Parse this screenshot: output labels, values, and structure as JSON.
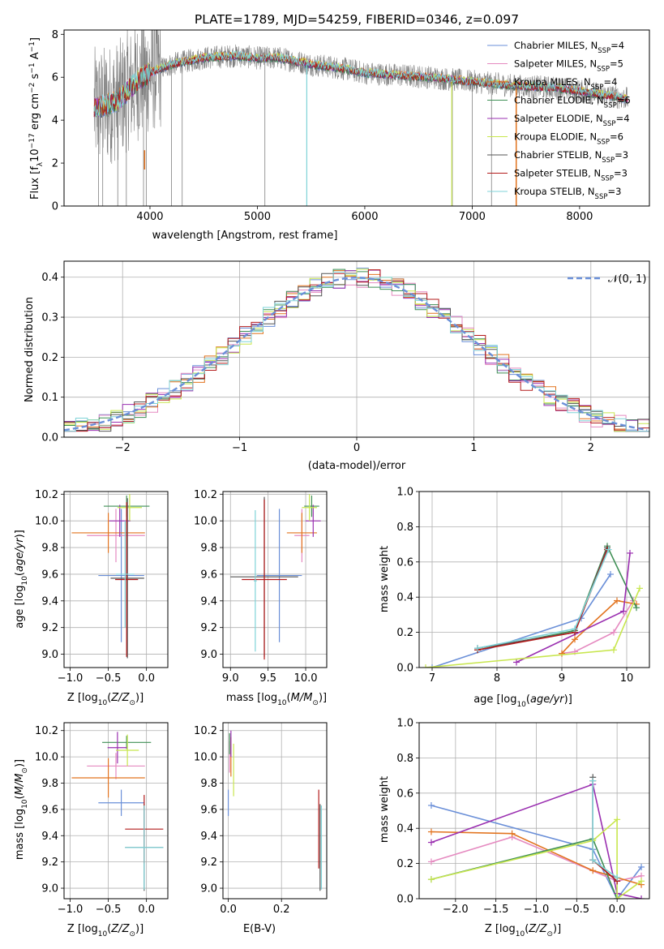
{
  "colors": {
    "Chabrier MILES": "#6a8fd8",
    "Salpeter MILES": "#e58ac0",
    "Kroupa MILES": "#e2731e",
    "Chabrier ELODIE": "#3f8f55",
    "Salpeter ELODIE": "#9a2fb0",
    "Kroupa ELODIE": "#c8e64e",
    "Chabrier STELIB": "#555555",
    "Salpeter STELIB": "#b31b1b",
    "Kroupa STELIB": "#7fd3d8",
    "data": "#808080"
  },
  "chart_data": [
    {
      "type": "line",
      "title": "PLATE=1789, MJD=54259, FIBERID=0346, z=0.097",
      "xlabel": "wavelength [Angstrom, rest frame]",
      "ylabel": "Flux [fλ10⁻¹⁷ erg cm⁻² s⁻¹ A⁻¹]",
      "xlim": [
        3200,
        8650
      ],
      "ylim": [
        0,
        8.2
      ],
      "xticks": [
        4000,
        5000,
        6000,
        7000,
        8000
      ],
      "yticks": [
        0,
        2,
        4,
        6,
        8
      ],
      "legend_position": "right",
      "legend": [
        "Chabrier MILES, N_SSP=4",
        "Salpeter MILES, N_SSP=5",
        "Kroupa MILES, N_SSP=4",
        "Chabrier ELODIE, N_SSP=6",
        "Salpeter ELODIE, N_SSP=4",
        "Kroupa ELODIE, N_SSP=6",
        "Chabrier STELIB, N_SSP=3",
        "Salpeter STELIB, N_SSP=3",
        "Kroupa STELIB, N_SSP=3"
      ],
      "legend_labels": [
        "Chabrier MILES, NSSP=4",
        "Salpeter MILES, NSSP=5",
        "Kroupa MILES, NSSP=4",
        "Chabrier ELODIE, NSSP=6",
        "Salpeter ELODIE, NSSP=4",
        "Kroupa ELODIE, NSSP=6",
        "Chabrier STELIB, NSSP=3",
        "Salpeter STELIB, NSSP=3",
        "Kroupa STELIB, NSSP=3"
      ],
      "model_continuum": {
        "x": [
          3500,
          3600,
          3700,
          3800,
          3900,
          4000,
          4200,
          4500,
          4800,
          5000,
          5200,
          5500,
          5800,
          6000,
          6300,
          6600,
          7000,
          7400,
          7800,
          8200,
          8450
        ],
        "y": [
          4.6,
          4.7,
          4.9,
          5.4,
          5.9,
          6.2,
          6.6,
          6.9,
          7.0,
          6.9,
          6.9,
          6.6,
          6.4,
          6.2,
          6.1,
          6.0,
          5.8,
          5.6,
          5.5,
          5.2,
          5.0
        ]
      }
    },
    {
      "type": "bar",
      "xlabel": "(data-model)/error",
      "ylabel": "Normed distribution",
      "xlim": [
        -2.5,
        2.5
      ],
      "ylim": [
        0,
        0.44
      ],
      "xticks": [
        -2,
        -1,
        0,
        1,
        2
      ],
      "yticks": [
        0.0,
        0.1,
        0.2,
        0.3,
        0.4
      ],
      "legend_position": "top-right",
      "legend": [
        "𝒩(0, 1)"
      ],
      "bin_width": 0.1
    },
    {
      "type": "scatter",
      "xlabel": "Z [log10(Z/Z⊙)]",
      "ylabel": "age  [log10(age/yr)]",
      "xlim": [
        -1.08,
        0.28
      ],
      "ylim": [
        8.9,
        10.22
      ],
      "xticks": [
        -1.0,
        -0.5,
        0.0
      ],
      "yticks": [
        9.0,
        9.2,
        9.4,
        9.6,
        9.8,
        10.0,
        10.2
      ],
      "points": [
        {
          "model": "Chabrier MILES",
          "x": -0.33,
          "xerr": 0.3,
          "y": 9.59,
          "yerr": 0.5
        },
        {
          "model": "Salpeter MILES",
          "x": -0.4,
          "xerr": 0.38,
          "y": 9.89,
          "yerr": 0.2
        },
        {
          "model": "Kroupa MILES",
          "x": -0.5,
          "xerr": 0.48,
          "y": 9.91,
          "yerr": 0.15
        },
        {
          "model": "Chabrier ELODIE",
          "x": -0.26,
          "xerr": 0.3,
          "y": 10.11,
          "yerr": 0.08
        },
        {
          "model": "Salpeter ELODIE",
          "x": -0.35,
          "xerr": 0.14,
          "y": 10.0,
          "yerr": 0.12
        },
        {
          "model": "Kroupa ELODIE",
          "x": -0.22,
          "xerr": 0.16,
          "y": 10.1,
          "yerr": 0.1
        },
        {
          "model": "Chabrier STELIB",
          "x": -0.25,
          "xerr": 0.22,
          "y": 9.57,
          "yerr": 0.6
        },
        {
          "model": "Salpeter STELIB",
          "x": -0.26,
          "xerr": 0.15,
          "y": 9.56,
          "yerr": 0.58
        },
        {
          "model": "Kroupa STELIB",
          "x": -0.28,
          "xerr": 0.12,
          "y": 9.6,
          "yerr": 0.4
        }
      ]
    },
    {
      "type": "scatter",
      "xlabel": "mass [log10(M/M⊙)]",
      "ylabel": "",
      "xlim": [
        8.9,
        10.28
      ],
      "ylim": [
        8.9,
        10.22
      ],
      "xticks": [
        9.0,
        9.5,
        10.0
      ],
      "yticks": [
        9.0,
        9.2,
        9.4,
        9.6,
        9.8,
        10.0,
        10.2
      ],
      "points": [
        {
          "model": "Chabrier MILES",
          "x": 9.65,
          "xerr": 0.3,
          "y": 9.59,
          "yerr": 0.5
        },
        {
          "model": "Salpeter MILES",
          "x": 9.95,
          "xerr": 0.1,
          "y": 9.89,
          "yerr": 0.2
        },
        {
          "model": "Kroupa MILES",
          "x": 9.95,
          "xerr": 0.2,
          "y": 9.91,
          "yerr": 0.15
        },
        {
          "model": "Chabrier ELODIE",
          "x": 10.08,
          "xerr": 0.1,
          "y": 10.11,
          "yerr": 0.08
        },
        {
          "model": "Salpeter ELODIE",
          "x": 10.1,
          "xerr": 0.1,
          "y": 10.0,
          "yerr": 0.12
        },
        {
          "model": "Kroupa ELODIE",
          "x": 10.05,
          "xerr": 0.1,
          "y": 10.1,
          "yerr": 0.1
        },
        {
          "model": "Chabrier STELIB",
          "x": 9.45,
          "xerr": 0.45,
          "y": 9.58,
          "yerr": 0.6
        },
        {
          "model": "Salpeter STELIB",
          "x": 9.45,
          "xerr": 0.3,
          "y": 9.56,
          "yerr": 0.6
        },
        {
          "model": "Kroupa STELIB",
          "x": 9.33,
          "xerr": 0.02,
          "y": 9.55,
          "yerr": 0.53
        }
      ]
    },
    {
      "type": "line",
      "xlabel": "age  [log10(age/yr)]",
      "ylabel": "mass weight",
      "xlim": [
        6.8,
        10.35
      ],
      "ylim": [
        0,
        1
      ],
      "xticks": [
        7,
        8,
        9,
        10
      ],
      "yticks": [
        0.0,
        0.2,
        0.4,
        0.6,
        0.8,
        1.0
      ],
      "series": [
        {
          "model": "Chabrier MILES",
          "x": [
            7.0,
            9.3,
            9.75
          ],
          "y": [
            0.0,
            0.28,
            0.53
          ]
        },
        {
          "model": "Salpeter MILES",
          "x": [
            9.0,
            9.2,
            9.8,
            10.1
          ],
          "y": [
            0.08,
            0.09,
            0.2,
            0.38
          ]
        },
        {
          "model": "Kroupa MILES",
          "x": [
            9.0,
            9.2,
            9.85,
            10.15
          ],
          "y": [
            0.08,
            0.16,
            0.38,
            0.36
          ]
        },
        {
          "model": "Chabrier ELODIE",
          "x": [
            7.7,
            9.2,
            9.7,
            10.15
          ],
          "y": [
            0.1,
            0.21,
            0.69,
            0.34
          ]
        },
        {
          "model": "Salpeter ELODIE",
          "x": [
            8.3,
            9.95,
            10.05
          ],
          "y": [
            0.03,
            0.32,
            0.65
          ]
        },
        {
          "model": "Kroupa ELODIE",
          "x": [
            6.9,
            9.8,
            10.2
          ],
          "y": [
            0.0,
            0.1,
            0.45
          ]
        },
        {
          "model": "Chabrier STELIB",
          "x": [
            7.7,
            9.2,
            9.7
          ],
          "y": [
            0.11,
            0.2,
            0.68
          ]
        },
        {
          "model": "Salpeter STELIB",
          "x": [
            7.7,
            9.2,
            9.7
          ],
          "y": [
            0.1,
            0.2,
            0.67
          ]
        },
        {
          "model": "Kroupa STELIB",
          "x": [
            7.7,
            9.2,
            9.72
          ],
          "y": [
            0.11,
            0.22,
            0.67
          ]
        }
      ]
    },
    {
      "type": "scatter",
      "xlabel": "Z [log10(Z/Z⊙)]",
      "ylabel": "mass [log10(M/M⊙)]",
      "xlim": [
        -1.08,
        0.28
      ],
      "ylim": [
        8.92,
        10.26
      ],
      "xticks": [
        -1.0,
        -0.5,
        0.0
      ],
      "yticks": [
        9.0,
        9.2,
        9.4,
        9.6,
        9.8,
        10.0,
        10.2
      ],
      "points": [
        {
          "model": "Chabrier MILES",
          "x": -0.33,
          "xerr": 0.3,
          "y": 9.65,
          "yerr": 0.1
        },
        {
          "model": "Salpeter MILES",
          "x": -0.4,
          "xerr": 0.38,
          "y": 9.93,
          "yerr": 0.1
        },
        {
          "model": "Kroupa MILES",
          "x": -0.5,
          "xerr": 0.48,
          "y": 9.84,
          "yerr": 0.15
        },
        {
          "model": "Chabrier ELODIE",
          "x": -0.26,
          "xerr": 0.32,
          "y": 10.11,
          "yerr": 0.05
        },
        {
          "model": "Salpeter ELODIE",
          "x": -0.38,
          "xerr": 0.13,
          "y": 10.07,
          "yerr": 0.12
        },
        {
          "model": "Kroupa ELODIE",
          "x": -0.25,
          "xerr": 0.15,
          "y": 10.05,
          "yerr": 0.12
        },
        {
          "model": "Chabrier STELIB",
          "x": -0.03,
          "xerr": 0.25,
          "y": 9.31,
          "yerr": 0.33
        },
        {
          "model": "Salpeter STELIB",
          "x": -0.03,
          "xerr": 0.25,
          "y": 9.45,
          "yerr": 0.26
        },
        {
          "model": "Kroupa STELIB",
          "x": -0.03,
          "xerr": 0.25,
          "y": 9.31,
          "yerr": 0.32
        }
      ]
    },
    {
      "type": "scatter",
      "xlabel": "E(B-V)",
      "ylabel": "",
      "xlim": [
        -0.02,
        0.37
      ],
      "ylim": [
        8.92,
        10.26
      ],
      "xticks": [
        0.0,
        0.2
      ],
      "yticks": [
        9.0,
        9.2,
        9.4,
        9.6,
        9.8,
        10.0,
        10.2
      ],
      "points": [
        {
          "model": "Chabrier MILES",
          "x": 0.0,
          "xerr": 0.0,
          "y": 9.65,
          "yerr": 0.1
        },
        {
          "model": "Salpeter MILES",
          "x": 0.005,
          "xerr": 0.0,
          "y": 10.0,
          "yerr": 0.12
        },
        {
          "model": "Kroupa MILES",
          "x": 0.01,
          "xerr": 0.0,
          "y": 10.0,
          "yerr": 0.15
        },
        {
          "model": "Chabrier ELODIE",
          "x": 0.005,
          "xerr": 0.0,
          "y": 10.1,
          "yerr": 0.08
        },
        {
          "model": "Salpeter ELODIE",
          "x": 0.01,
          "xerr": 0.0,
          "y": 10.1,
          "yerr": 0.1
        },
        {
          "model": "Kroupa ELODIE",
          "x": 0.02,
          "xerr": 0.0,
          "y": 9.9,
          "yerr": 0.2
        },
        {
          "model": "Chabrier STELIB",
          "x": 0.345,
          "xerr": 0.0,
          "y": 9.31,
          "yerr": 0.33
        },
        {
          "model": "Salpeter STELIB",
          "x": 0.34,
          "xerr": 0.0,
          "y": 9.45,
          "yerr": 0.3
        },
        {
          "model": "Kroupa STELIB",
          "x": 0.35,
          "xerr": 0.0,
          "y": 9.31,
          "yerr": 0.32
        }
      ]
    },
    {
      "type": "line",
      "xlabel": "Z [log10(Z/Z⊙)]",
      "ylabel": "mass weight",
      "xlim": [
        -2.45,
        0.4
      ],
      "ylim": [
        0,
        1
      ],
      "xticks": [
        -2.0,
        -1.5,
        -1.0,
        -0.5,
        0.0
      ],
      "yticks": [
        0.0,
        0.2,
        0.4,
        0.6,
        0.8,
        1.0
      ],
      "series": [
        {
          "model": "Chabrier MILES",
          "x": [
            -2.3,
            -0.3,
            0.0,
            0.3
          ],
          "y": [
            0.53,
            0.28,
            0.0,
            0.18
          ]
        },
        {
          "model": "Salpeter MILES",
          "x": [
            -2.3,
            -1.3,
            0.0,
            0.3
          ],
          "y": [
            0.21,
            0.35,
            0.1,
            0.13
          ]
        },
        {
          "model": "Kroupa MILES",
          "x": [
            -2.3,
            -1.3,
            -0.3,
            0.3
          ],
          "y": [
            0.38,
            0.37,
            0.16,
            0.08
          ]
        },
        {
          "model": "Chabrier ELODIE",
          "x": [
            -2.3,
            -0.3,
            0.0
          ],
          "y": [
            0.11,
            0.34,
            0.0
          ]
        },
        {
          "model": "Salpeter ELODIE",
          "x": [
            -2.3,
            -0.3,
            0.0,
            0.3
          ],
          "y": [
            0.32,
            0.65,
            0.03,
            0.0
          ]
        },
        {
          "model": "Kroupa ELODIE",
          "x": [
            -2.3,
            -0.3,
            0.0,
            0.0,
            0.3
          ],
          "y": [
            0.11,
            0.33,
            0.45,
            0.0,
            0.1
          ]
        },
        {
          "model": "Chabrier STELIB",
          "x": [
            -0.3,
            -0.3,
            0.0
          ],
          "y": [
            0.69,
            0.22,
            0.1
          ]
        },
        {
          "model": "Salpeter STELIB",
          "x": [
            -0.3,
            -0.3,
            0.0
          ],
          "y": [
            0.67,
            0.22,
            0.1
          ]
        },
        {
          "model": "Kroupa STELIB",
          "x": [
            -0.3,
            -0.3,
            0.0
          ],
          "y": [
            0.67,
            0.22,
            0.12
          ]
        }
      ]
    }
  ]
}
